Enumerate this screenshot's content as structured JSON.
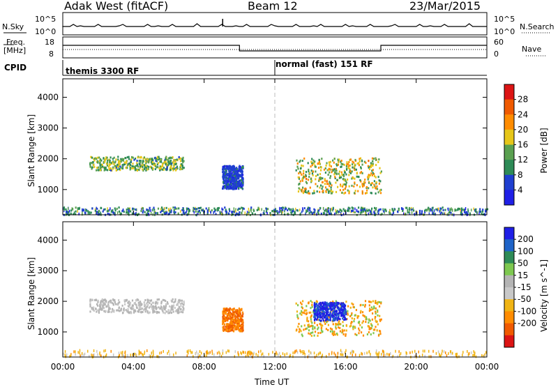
{
  "header": {
    "station": "Adak West (fitACF)",
    "beam": "Beam 12",
    "date": "23/Mar/2015"
  },
  "sky_panel": {
    "left_label": "N.Sky",
    "right_label": "N.Search",
    "tick_top": "10^5",
    "tick_bottom": "10^0"
  },
  "freq_panel": {
    "left_label_1": "Freq.",
    "left_label_2": "[MHz]",
    "right_label": "Nave",
    "left_tick_top": "18",
    "left_tick_bottom": "8",
    "right_tick_top": "60",
    "right_tick_bottom": "0"
  },
  "cpid_panel": {
    "label": "CPID",
    "mode_1": "themis 3300 RF",
    "mode_2": "normal (fast) 151 RF"
  },
  "colors": {
    "power_scale": [
      "#1f1fe6",
      "#1f3fd0",
      "#2e8b57",
      "#5aa050",
      "#e6c619",
      "#ff8c00",
      "#f05a00",
      "#dc1414"
    ],
    "velocity_scale": [
      "#1f1fe6",
      "#1f64c8",
      "#2e8b57",
      "#7ec850",
      "#b4b4b4",
      "#c8c8c8",
      "#f0b414",
      "#ff8c00",
      "#f05a00",
      "#dc1414"
    ]
  },
  "chart_data": [
    {
      "type": "heatmap",
      "title": "",
      "xlabel": "",
      "ylabel": "Slant Range [km]",
      "ylim": [
        180,
        4600
      ],
      "yticks": [
        "1000",
        "2000",
        "3000",
        "4000"
      ],
      "colorbar": {
        "label": "Power [dB]",
        "ticks": [
          "4",
          "8",
          "12",
          "16",
          "20",
          "24",
          "28"
        ],
        "range": [
          0,
          32
        ]
      },
      "echo_regions": [
        {
          "time_start": "01:30",
          "time_end": "06:50",
          "range_start": 1650,
          "range_end": 2100,
          "peak_power": 18
        },
        {
          "time_start": "13:10",
          "time_end": "18:00",
          "range_start": 900,
          "range_end": 2050,
          "peak_power": 22
        },
        {
          "time_start": "09:00",
          "time_end": "10:10",
          "range_start": 1050,
          "range_end": 1800,
          "peak_power": 8
        },
        {
          "time_start": "00:00",
          "time_end": "24:00",
          "range_start": 200,
          "range_end": 450,
          "peak_power": 12
        }
      ]
    },
    {
      "type": "heatmap",
      "title": "",
      "xlabel": "Time UT",
      "ylabel": "Slant Range [km]",
      "ylim": [
        180,
        4600
      ],
      "yticks": [
        "1000",
        "2000",
        "3000",
        "4000"
      ],
      "xticks": [
        "00:00",
        "04:00",
        "08:00",
        "12:00",
        "16:00",
        "20:00",
        "00:00"
      ],
      "colorbar": {
        "label": "Velocity [m s^-1]",
        "ticks": [
          "200",
          "100",
          "50",
          "15",
          "-15",
          "-50",
          "-100",
          "-200"
        ]
      },
      "echo_regions": [
        {
          "time_start": "01:30",
          "time_end": "06:50",
          "range_start": 1650,
          "range_end": 2100,
          "velocity": 0
        },
        {
          "time_start": "13:10",
          "time_end": "18:00",
          "range_start": 900,
          "range_end": 2050,
          "velocity": -60
        },
        {
          "time_start": "14:10",
          "time_end": "16:00",
          "range_start": 1400,
          "range_end": 2000,
          "velocity": 180
        },
        {
          "time_start": "09:00",
          "time_end": "10:10",
          "range_start": 1050,
          "range_end": 1800,
          "velocity": -120
        }
      ]
    }
  ]
}
